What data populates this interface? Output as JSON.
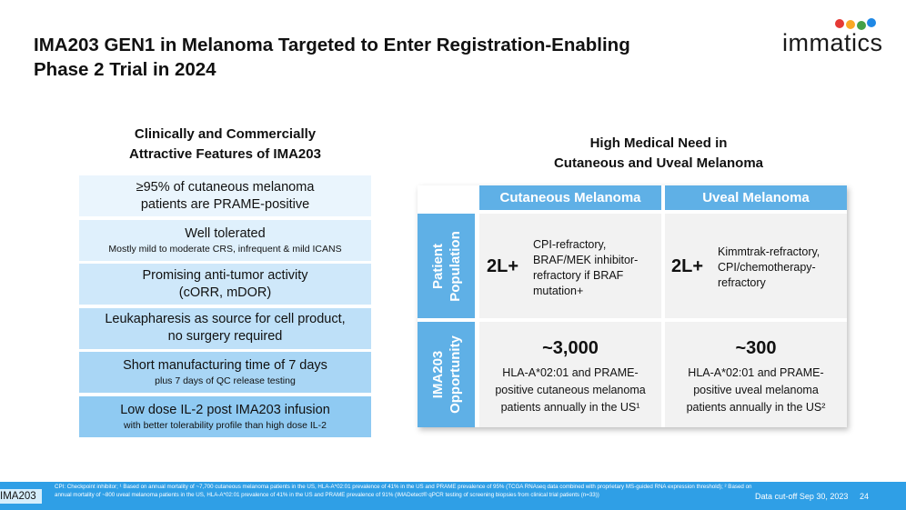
{
  "header": {
    "title_line1": "IMA203 GEN1 in Melanoma Targeted to Enter Registration-Enabling",
    "title_line2": "Phase 2 Trial in 2024",
    "logo_text": "immatics"
  },
  "left_panel": {
    "title_line1": "Clinically and Commercially",
    "title_line2": "Attractive Features of IMA203",
    "features": [
      {
        "main1": "≥95% of cutaneous melanoma",
        "main2": "patients are PRAME-positive",
        "sub": "",
        "color": "#eaf5fd"
      },
      {
        "main1": "Well tolerated",
        "main2": "",
        "sub": "Mostly mild to moderate CRS, infrequent & mild ICANS",
        "color": "#dff0fc"
      },
      {
        "main1": "Promising anti-tumor activity",
        "main2": "(cORR, mDOR)",
        "sub": "",
        "color": "#cfe8fa"
      },
      {
        "main1": "Leukapharesis as source for cell product,",
        "main2": "no surgery required",
        "sub": "",
        "color": "#bee0f8"
      },
      {
        "main1": "Short manufacturing time of 7 days",
        "main2": "",
        "sub": "plus 7 days of QC release testing",
        "color": "#a9d6f5"
      },
      {
        "main1": "Low dose IL-2 post IMA203 infusion",
        "main2": "",
        "sub": "with better tolerability profile than high dose IL-2",
        "color": "#8fcaf2"
      }
    ]
  },
  "right_panel": {
    "title_line1": "High Medical Need in",
    "title_line2": "Cutaneous and Uveal Melanoma",
    "columns": [
      "Cutaneous Melanoma",
      "Uveal Melanoma"
    ],
    "rows": [
      "Patient\nPopulation",
      "IMA203\nOpportunity"
    ],
    "population": [
      {
        "line": "2L+",
        "desc": [
          "CPI-refractory,",
          "BRAF/MEK inhibitor-",
          "refractory if BRAF",
          "mutation+"
        ]
      },
      {
        "line": "2L+",
        "desc": [
          "Kimmtrak-refractory,",
          "CPI/chemotherapy-",
          "refractory"
        ]
      }
    ],
    "opportunity": [
      {
        "count": "~3,000",
        "desc": [
          "HLA-A*02:01 and PRAME-",
          "positive cutaneous melanoma",
          "patients annually in the US¹"
        ]
      },
      {
        "count": "~300",
        "desc": [
          "HLA-A*02:01 and PRAME-",
          "positive uveal melanoma",
          "patients annually in the US²"
        ]
      }
    ]
  },
  "footer": {
    "tag": "IMA203",
    "footnote": "CPI: Checkpoint inhibitor; ¹ Based on annual mortality of ~7,700 cutaneous melanoma patients in the US, HLA-A*02:01 prevalence of 41% in the US and PRAME prevalence of 95% (TCGA RNAseq data combined with proprietary MS-guided RNA expression threshold); ² Based on annual mortality of ~800 uveal melanoma patients in the US, HLA-A*02:01 prevalence of 41% in the US and PRAME prevalence of 91% (IMADetect® qPCR testing of screening biopsies from clinical trial patients (n=33))",
    "cutoff": "Data cut-off Sep 30, 2023",
    "page": "24"
  },
  "colors": {
    "accent": "#5fb0e6",
    "footer": "#2f9fe6",
    "cell": "#f2f2f2"
  }
}
